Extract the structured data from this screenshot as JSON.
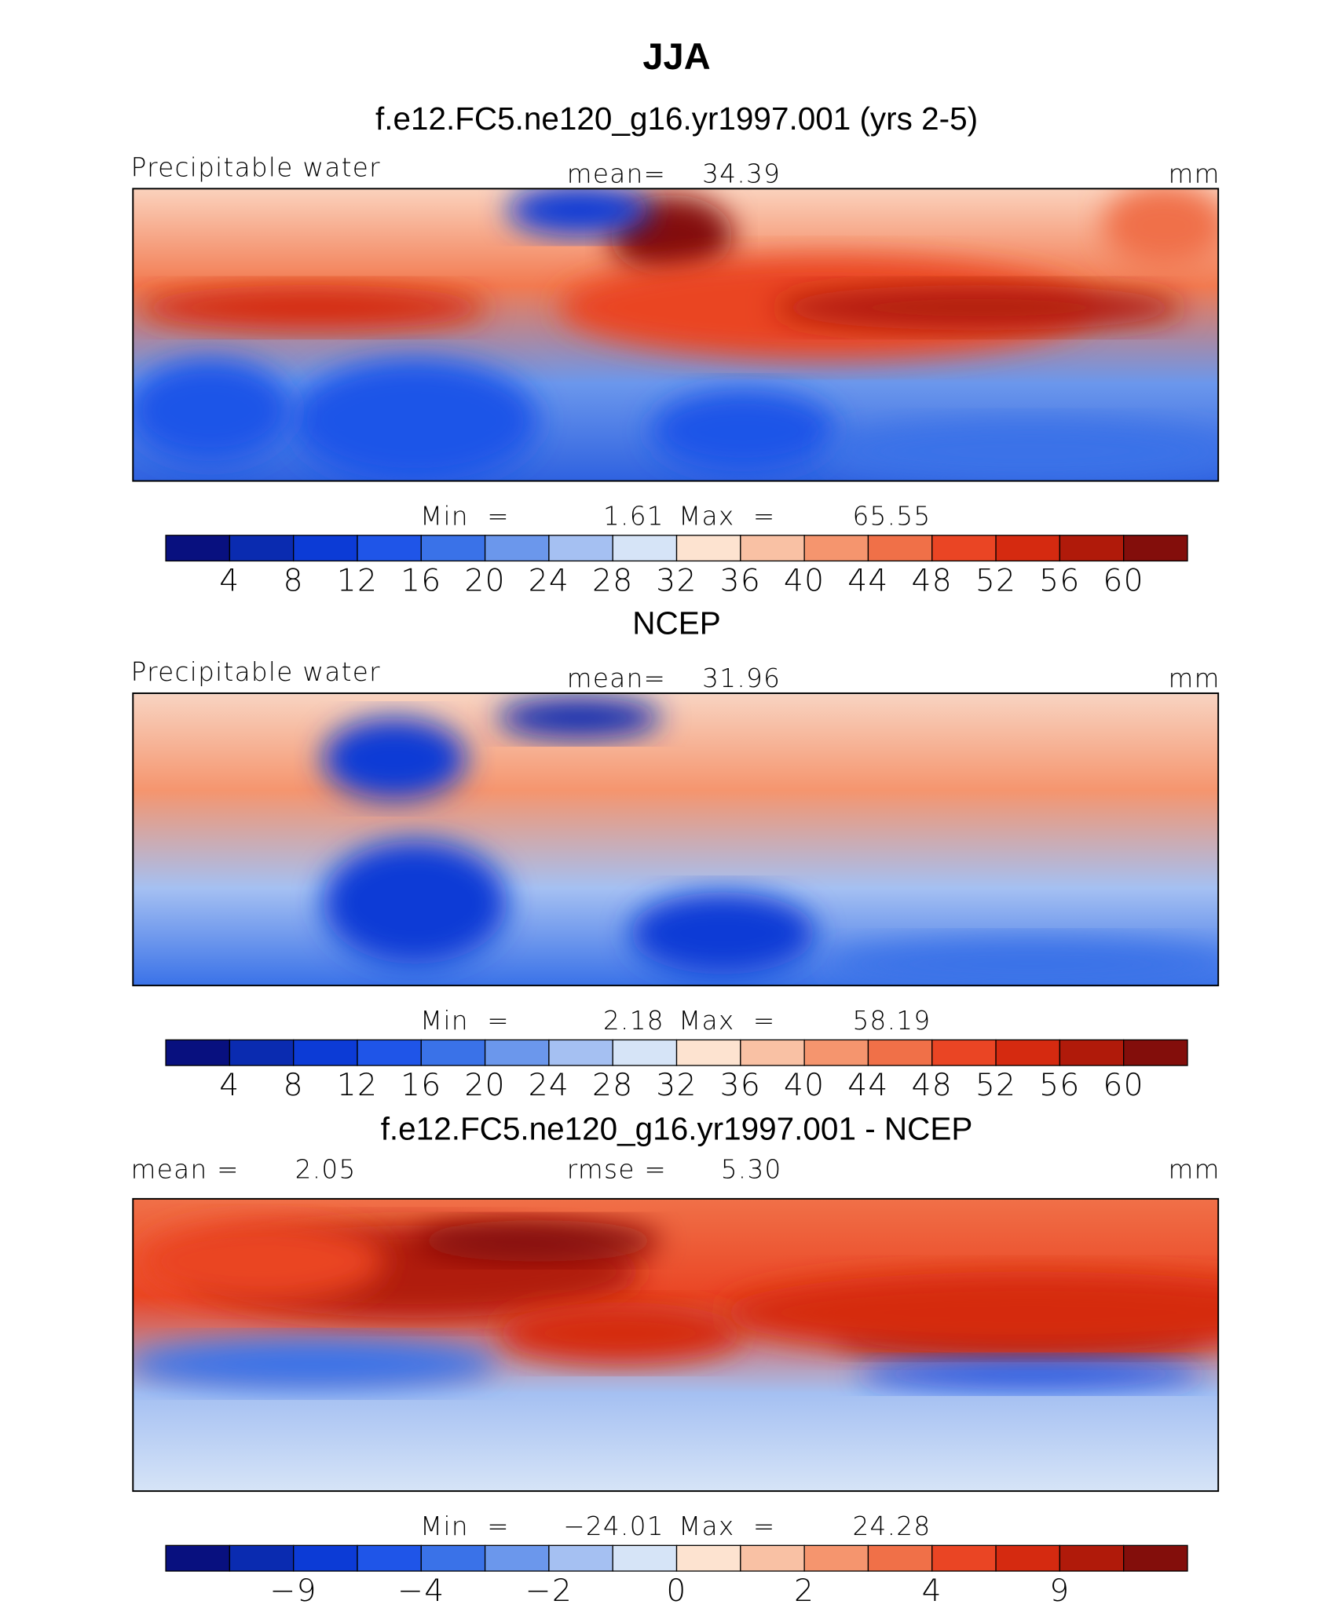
{
  "title": "JJA",
  "panels": [
    {
      "title": "f.e12.FC5.ne120_g16.yr1997.001 (yrs 2-5)",
      "left_label": "Precipitable water",
      "center_label": "mean=",
      "center_value": "34.39",
      "right_label": "mm",
      "min_label": "Min  =",
      "min": "1.61",
      "max_label": "Max  =",
      "max": "65.55",
      "colorbar": {
        "colors": [
          "#08107f",
          "#0a2bb0",
          "#0c3bd6",
          "#1f55e8",
          "#3a72e8",
          "#6b97ec",
          "#a5c0f2",
          "#d6e4f7",
          "#fde3d0",
          "#f9c1a4",
          "#f5956e",
          "#f07048",
          "#ea4524",
          "#d52a10",
          "#b01a0a",
          "#830e0b"
        ],
        "labels": [
          "4",
          "8",
          "12",
          "16",
          "20",
          "24",
          "28",
          "32",
          "36",
          "40",
          "44",
          "48",
          "52",
          "56",
          "60"
        ]
      }
    },
    {
      "title": "NCEP",
      "left_label": "Precipitable water",
      "center_label": "mean=",
      "center_value": "31.96",
      "right_label": "mm",
      "min_label": "Min  =",
      "min": "2.18",
      "max_label": "Max  =",
      "max": "58.19",
      "colorbar": {
        "colors": [
          "#08107f",
          "#0a2bb0",
          "#0c3bd6",
          "#1f55e8",
          "#3a72e8",
          "#6b97ec",
          "#a5c0f2",
          "#d6e4f7",
          "#fde3d0",
          "#f9c1a4",
          "#f5956e",
          "#f07048",
          "#ea4524",
          "#d52a10",
          "#b01a0a",
          "#830e0b"
        ],
        "labels": [
          "4",
          "8",
          "12",
          "16",
          "20",
          "24",
          "28",
          "32",
          "36",
          "40",
          "44",
          "48",
          "52",
          "56",
          "60"
        ]
      }
    },
    {
      "title": "f.e12.FC5.ne120_g16.yr1997.001 - NCEP",
      "left_label": "mean =",
      "left_value": "2.05",
      "center_label": "rmse =",
      "center_value": "5.30",
      "right_label": "mm",
      "min_label": "Min  =",
      "min": "−24.01",
      "max_label": "Max  =",
      "max": "24.28",
      "colorbar": {
        "colors": [
          "#08107f",
          "#0a2bb0",
          "#0c3bd6",
          "#1f55e8",
          "#3a72e8",
          "#6b97ec",
          "#a5c0f2",
          "#d6e4f7",
          "#fde3d0",
          "#f9c1a4",
          "#f5956e",
          "#f07048",
          "#ea4524",
          "#d52a10",
          "#b01a0a",
          "#830e0b"
        ],
        "labels": [
          null,
          "−9",
          null,
          "−4",
          null,
          "−2",
          null,
          "0",
          null,
          "2",
          null,
          "4",
          null,
          "9",
          null
        ]
      }
    }
  ]
}
